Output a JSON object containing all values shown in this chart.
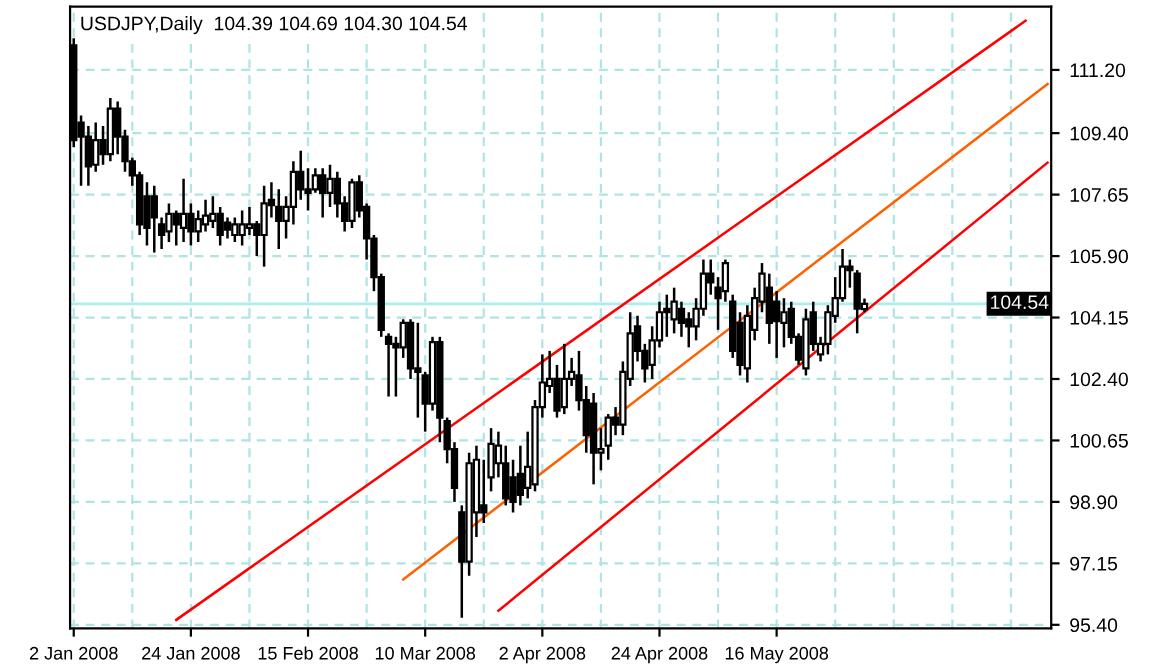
{
  "chart_data": {
    "type": "candlestick",
    "title": "USDJPY,Daily  104.39 104.69 104.30 104.54",
    "categories": [
      "2 Jan 2008",
      null,
      null,
      null,
      null,
      null,
      null,
      null,
      null,
      null,
      null,
      null,
      null,
      null,
      null,
      null,
      "24 Jan 2008",
      null,
      null,
      null,
      null,
      null,
      null,
      null,
      null,
      null,
      null,
      null,
      null,
      null,
      null,
      null,
      "15 Feb 2008",
      null,
      null,
      null,
      null,
      null,
      null,
      null,
      null,
      null,
      null,
      null,
      null,
      null,
      null,
      null,
      "10 Mar 2008",
      null,
      null,
      null,
      null,
      null,
      null,
      null,
      null,
      null,
      null,
      null,
      null,
      null,
      null,
      null,
      "2 Apr 2008",
      null,
      null,
      null,
      null,
      null,
      null,
      null,
      null,
      null,
      null,
      null,
      null,
      null,
      null,
      null,
      "24 Apr 2008",
      null,
      null,
      null,
      null,
      null,
      null,
      null,
      null,
      null,
      null,
      null,
      null,
      null,
      null,
      null,
      "16 May 2008",
      null,
      null,
      null,
      null,
      null,
      null,
      null,
      null,
      null,
      null,
      null,
      null,
      null,
      null,
      null,
      null,
      null,
      null,
      null,
      null,
      null,
      null,
      null,
      null,
      null,
      null,
      null,
      null,
      null,
      null,
      null,
      null,
      null,
      null,
      null,
      null,
      null
    ],
    "ohlc": [
      [
        111.9,
        112.1,
        109.0,
        109.2
      ],
      [
        109.7,
        109.9,
        107.9,
        109.3
      ],
      [
        109.3,
        109.6,
        107.9,
        108.45
      ],
      [
        108.5,
        109.7,
        108.3,
        109.2
      ],
      [
        109.2,
        109.6,
        108.5,
        108.8
      ],
      [
        108.8,
        110.4,
        108.6,
        110.1
      ],
      [
        110.1,
        110.3,
        108.8,
        109.3
      ],
      [
        109.3,
        109.5,
        108.3,
        108.6
      ],
      [
        108.6,
        108.7,
        107.9,
        108.2
      ],
      [
        108.2,
        108.3,
        106.5,
        106.8
      ],
      [
        107.6,
        108.0,
        106.2,
        106.7
      ],
      [
        107.6,
        107.9,
        106.0,
        107.0
      ],
      [
        106.8,
        107.0,
        106.1,
        106.5
      ],
      [
        106.6,
        107.4,
        106.3,
        107.1
      ],
      [
        107.1,
        107.2,
        106.2,
        106.8
      ],
      [
        106.7,
        108.1,
        106.3,
        107.1
      ],
      [
        107.1,
        107.4,
        106.2,
        106.6
      ],
      [
        106.6,
        107.2,
        106.3,
        106.95
      ],
      [
        106.8,
        107.5,
        106.6,
        107.05
      ],
      [
        106.9,
        107.6,
        106.7,
        107.1
      ],
      [
        107.1,
        107.3,
        106.2,
        106.5
      ],
      [
        106.85,
        107.0,
        106.4,
        106.65
      ],
      [
        106.5,
        107.0,
        106.3,
        106.8
      ],
      [
        106.5,
        107.2,
        106.2,
        106.8
      ],
      [
        106.7,
        107.3,
        106.5,
        106.8
      ],
      [
        106.8,
        106.9,
        105.9,
        106.5
      ],
      [
        106.5,
        107.9,
        105.6,
        107.4
      ],
      [
        107.5,
        108.0,
        107.0,
        107.35
      ],
      [
        107.3,
        107.8,
        106.1,
        106.9
      ],
      [
        106.9,
        107.6,
        106.4,
        107.3
      ],
      [
        107.3,
        108.6,
        106.8,
        108.3
      ],
      [
        108.3,
        108.9,
        107.5,
        107.8
      ],
      [
        107.8,
        108.4,
        107.2,
        107.7
      ],
      [
        107.8,
        108.4,
        107.7,
        108.2
      ],
      [
        108.2,
        108.4,
        107.0,
        107.7
      ],
      [
        107.7,
        108.5,
        107.3,
        108.1
      ],
      [
        108.1,
        108.3,
        107.0,
        107.4
      ],
      [
        107.4,
        107.6,
        106.6,
        106.9
      ],
      [
        106.9,
        108.1,
        106.7,
        108.0
      ],
      [
        108.0,
        108.2,
        107.0,
        107.2
      ],
      [
        107.3,
        107.4,
        105.8,
        106.4
      ],
      [
        106.4,
        106.5,
        104.9,
        105.3
      ],
      [
        105.3,
        105.4,
        103.6,
        103.8
      ],
      [
        103.6,
        103.7,
        101.9,
        103.4
      ],
      [
        103.4,
        103.6,
        101.9,
        103.3
      ],
      [
        103.3,
        104.1,
        103.0,
        104.0
      ],
      [
        104.0,
        104.1,
        102.4,
        102.7
      ],
      [
        102.7,
        104.0,
        101.3,
        102.6
      ],
      [
        102.5,
        102.6,
        100.9,
        101.7
      ],
      [
        101.7,
        103.6,
        101.5,
        103.45
      ],
      [
        103.45,
        103.6,
        100.6,
        101.3
      ],
      [
        101.2,
        101.3,
        100.0,
        100.4
      ],
      [
        100.4,
        100.6,
        98.9,
        99.3
      ],
      [
        98.6,
        98.8,
        95.6,
        97.2
      ],
      [
        97.2,
        100.3,
        96.8,
        100.0
      ],
      [
        98.6,
        100.5,
        97.9,
        100.1
      ],
      [
        98.8,
        100.1,
        98.3,
        98.6
      ],
      [
        99.6,
        101.0,
        99.2,
        100.55
      ],
      [
        100.0,
        100.9,
        99.6,
        100.5
      ],
      [
        100.0,
        100.5,
        98.8,
        99.0
      ],
      [
        99.6,
        100.1,
        98.6,
        98.9
      ],
      [
        99.7,
        100.5,
        98.8,
        99.1
      ],
      [
        99.3,
        100.9,
        99.0,
        99.9
      ],
      [
        99.4,
        101.8,
        99.2,
        101.6
      ],
      [
        101.6,
        103.1,
        101.3,
        102.3
      ],
      [
        102.2,
        103.2,
        102.0,
        102.4
      ],
      [
        102.4,
        102.8,
        101.3,
        101.5
      ],
      [
        101.6,
        103.4,
        101.4,
        102.4
      ],
      [
        102.4,
        103.0,
        102.2,
        102.6
      ],
      [
        102.5,
        103.2,
        101.5,
        101.8
      ],
      [
        101.8,
        102.2,
        100.3,
        100.8
      ],
      [
        101.7,
        102.0,
        99.4,
        100.3
      ],
      [
        100.3,
        101.0,
        99.8,
        100.4
      ],
      [
        100.5,
        101.4,
        100.1,
        101.3
      ],
      [
        101.3,
        101.6,
        100.8,
        101.1
      ],
      [
        101.1,
        102.9,
        100.8,
        102.6
      ],
      [
        102.4,
        104.3,
        102.2,
        103.7
      ],
      [
        103.9,
        104.2,
        102.9,
        103.2
      ],
      [
        103.2,
        103.4,
        102.3,
        102.7
      ],
      [
        102.8,
        103.9,
        102.4,
        103.5
      ],
      [
        103.5,
        104.6,
        103.3,
        104.3
      ],
      [
        104.4,
        104.8,
        103.6,
        104.3
      ],
      [
        104.1,
        105.0,
        103.7,
        104.6
      ],
      [
        104.4,
        104.6,
        103.6,
        104.0
      ],
      [
        104.1,
        104.3,
        103.3,
        103.9
      ],
      [
        103.9,
        104.7,
        103.5,
        104.4
      ],
      [
        104.4,
        105.8,
        104.2,
        105.4
      ],
      [
        105.4,
        105.8,
        104.8,
        105.15
      ],
      [
        105.0,
        105.3,
        103.8,
        104.7
      ],
      [
        104.9,
        105.8,
        104.6,
        105.7
      ],
      [
        104.6,
        104.8,
        103.0,
        103.2
      ],
      [
        104.0,
        104.3,
        102.5,
        102.8
      ],
      [
        102.7,
        104.5,
        102.3,
        104.2
      ],
      [
        103.8,
        105.0,
        103.5,
        104.7
      ],
      [
        104.6,
        105.7,
        104.3,
        105.4
      ],
      [
        105.0,
        105.4,
        103.4,
        104.0
      ],
      [
        104.6,
        104.9,
        103.0,
        104.05
      ],
      [
        104.0,
        104.7,
        103.3,
        104.3
      ],
      [
        104.4,
        104.6,
        103.4,
        103.6
      ],
      [
        103.6,
        103.7,
        102.8,
        102.95
      ],
      [
        102.7,
        104.4,
        102.5,
        104.1
      ],
      [
        104.3,
        104.6,
        103.2,
        103.4
      ],
      [
        103.1,
        103.6,
        102.9,
        103.4
      ],
      [
        103.4,
        104.5,
        103.1,
        104.3
      ],
      [
        104.2,
        105.3,
        104.0,
        104.7
      ],
      [
        104.7,
        106.1,
        104.6,
        105.6
      ],
      [
        105.6,
        105.8,
        105.0,
        105.5
      ],
      [
        105.4,
        105.5,
        103.7,
        104.4
      ],
      [
        104.39,
        104.69,
        104.3,
        104.54
      ],
      null,
      null,
      null,
      null,
      null,
      null,
      null,
      null,
      null,
      null,
      null,
      null,
      null,
      null,
      null,
      null,
      null,
      null,
      null,
      null,
      null,
      null,
      null,
      null,
      null
    ],
    "series": [
      {
        "type": "line",
        "color": "#ff0000",
        "values": [
          null,
          null,
          null,
          null,
          null,
          null,
          null,
          null,
          null,
          null,
          null,
          null,
          null,
          null,
          95.54,
          null,
          null,
          null,
          null,
          null,
          null,
          null,
          null,
          null,
          null,
          null,
          null,
          null,
          null,
          null,
          null,
          null,
          null,
          null,
          null,
          null,
          null,
          null,
          null,
          null,
          null,
          null,
          null,
          null,
          null,
          null,
          null,
          null,
          null,
          null,
          null,
          null,
          null,
          null,
          null,
          null,
          null,
          null,
          null,
          null,
          null,
          null,
          null,
          null,
          null,
          null,
          null,
          null,
          null,
          null,
          null,
          null,
          null,
          null,
          null,
          null,
          null,
          null,
          null,
          null,
          null,
          null,
          null,
          null,
          null,
          null,
          null,
          null,
          null,
          null,
          null,
          null,
          null,
          null,
          null,
          null,
          null,
          null,
          null,
          null,
          null,
          null,
          null,
          null,
          null,
          null,
          null,
          null,
          null,
          null,
          null,
          null,
          null,
          null,
          null,
          null,
          null,
          null,
          null,
          null,
          null,
          null,
          null,
          null,
          null,
          null,
          null,
          null,
          null,
          null,
          112.6,
          null,
          null,
          null
        ]
      },
      {
        "type": "line",
        "color": "#ff6000",
        "values": [
          null,
          null,
          null,
          null,
          null,
          null,
          null,
          null,
          null,
          null,
          null,
          null,
          null,
          null,
          null,
          null,
          null,
          null,
          null,
          null,
          null,
          null,
          null,
          null,
          null,
          null,
          null,
          null,
          null,
          null,
          null,
          null,
          null,
          null,
          null,
          null,
          null,
          null,
          null,
          null,
          null,
          null,
          null,
          null,
          null,
          96.69,
          null,
          null,
          null,
          null,
          null,
          null,
          null,
          null,
          null,
          null,
          null,
          null,
          null,
          null,
          null,
          null,
          null,
          null,
          null,
          null,
          null,
          null,
          null,
          null,
          null,
          null,
          null,
          null,
          null,
          null,
          null,
          null,
          null,
          null,
          null,
          null,
          null,
          null,
          null,
          null,
          null,
          null,
          null,
          null,
          null,
          null,
          null,
          null,
          null,
          null,
          null,
          null,
          null,
          null,
          null,
          null,
          null,
          null,
          null,
          null,
          null,
          null,
          null,
          null,
          null,
          null,
          null,
          null,
          null,
          null,
          null,
          null,
          null,
          null,
          null,
          null,
          null,
          null,
          null,
          null,
          null,
          null,
          null,
          null,
          null,
          null,
          null,
          110.8
        ]
      },
      {
        "type": "line",
        "color": "#ff0000",
        "values": [
          null,
          null,
          null,
          null,
          null,
          null,
          null,
          null,
          null,
          null,
          null,
          null,
          null,
          null,
          null,
          null,
          null,
          null,
          null,
          null,
          null,
          null,
          null,
          null,
          null,
          null,
          null,
          null,
          null,
          null,
          null,
          null,
          null,
          null,
          null,
          null,
          null,
          null,
          null,
          null,
          null,
          null,
          null,
          null,
          null,
          null,
          null,
          null,
          null,
          null,
          null,
          null,
          null,
          null,
          null,
          null,
          null,
          null,
          95.8,
          null,
          null,
          null,
          null,
          null,
          null,
          null,
          null,
          null,
          null,
          null,
          null,
          null,
          null,
          null,
          null,
          null,
          null,
          null,
          null,
          null,
          null,
          null,
          null,
          null,
          null,
          null,
          null,
          null,
          null,
          null,
          null,
          null,
          null,
          null,
          null,
          null,
          null,
          null,
          null,
          null,
          null,
          null,
          null,
          null,
          null,
          null,
          null,
          null,
          null,
          null,
          null,
          null,
          null,
          null,
          null,
          null,
          null,
          null,
          null,
          null,
          null,
          null,
          null,
          null,
          null,
          null,
          null,
          null,
          null,
          null,
          null,
          null,
          null,
          108.56
        ]
      }
    ],
    "ref_lines": [
      {
        "axis": "y",
        "value": 104.54,
        "label": "104.54",
        "color": "#aaeeee"
      }
    ],
    "ylim": [
      95.3,
      113.0
    ],
    "yticks": [
      {
        "value": 111.2,
        "label": "111.20"
      },
      {
        "value": 109.4,
        "label": "109.40"
      },
      107.65,
      {
        "value": 105.9,
        "label": "105.90"
      },
      104.15,
      {
        "value": 102.4,
        "label": "102.40"
      },
      100.65,
      {
        "value": 98.9,
        "label": "98.90"
      },
      97.15,
      {
        "value": 95.4,
        "label": "95.40"
      }
    ],
    "grid": true
  }
}
